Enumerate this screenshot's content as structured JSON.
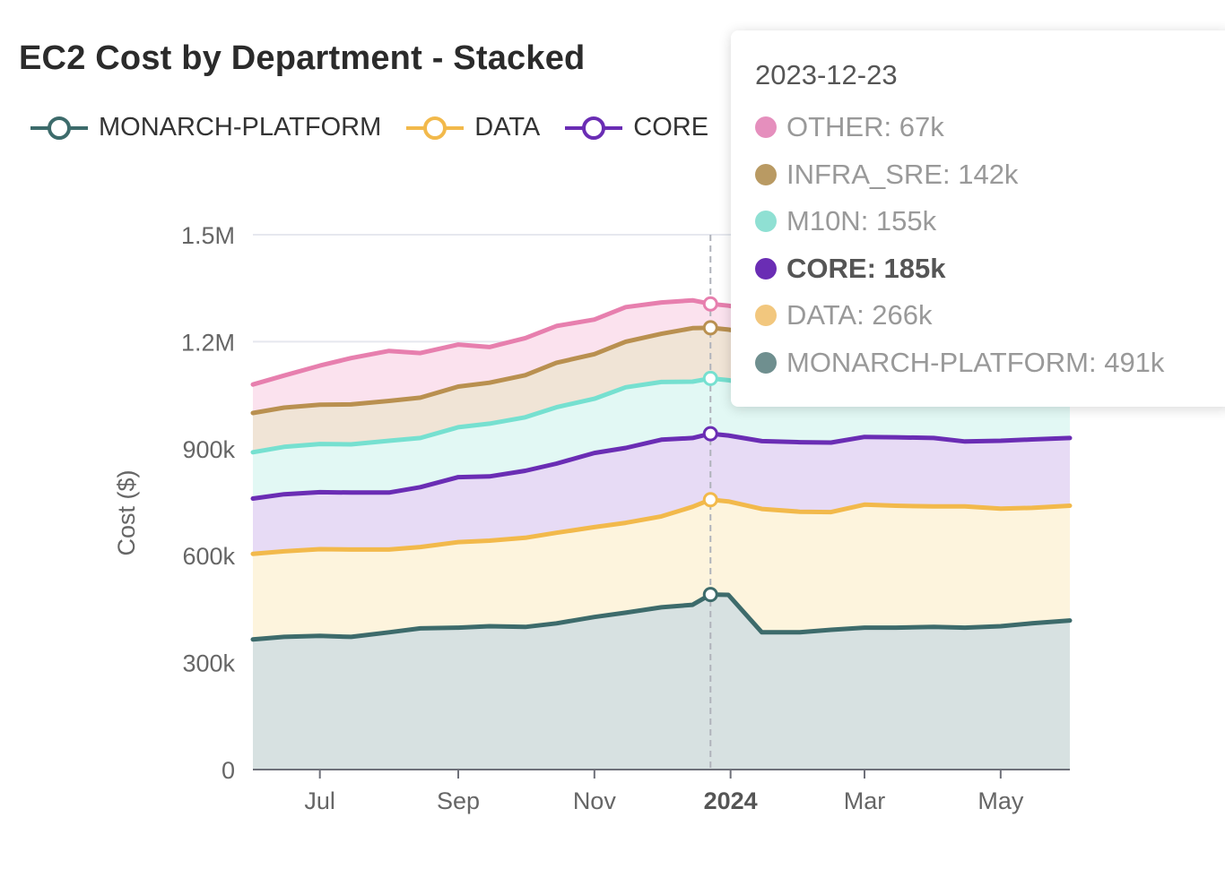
{
  "chart_data": {
    "type": "area",
    "stacked": true,
    "title": "EC2 Cost by Department - Stacked",
    "ylabel": "Cost ($)",
    "ylim": [
      0,
      1500000
    ],
    "x_tick_labels": [
      "Jul",
      "Sep",
      "Nov",
      "2024",
      "Mar",
      "May"
    ],
    "y_tick_labels": [
      "0",
      "300k",
      "600k",
      "900k",
      "1.2M",
      "1.5M"
    ],
    "x": [
      "2023-06-01",
      "2023-06-15",
      "2023-07-01",
      "2023-07-15",
      "2023-08-01",
      "2023-08-15",
      "2023-09-01",
      "2023-09-15",
      "2023-10-01",
      "2023-10-15",
      "2023-11-01",
      "2023-11-15",
      "2023-12-01",
      "2023-12-15",
      "2023-12-23",
      "2023-12-31",
      "2024-01-15",
      "2024-02-01",
      "2024-02-15",
      "2024-03-01",
      "2024-03-15",
      "2024-04-01",
      "2024-04-15",
      "2024-05-01",
      "2024-05-15",
      "2024-06-01"
    ],
    "series": [
      {
        "name": "MONARCH-PLATFORM",
        "color": "#3d6b6b",
        "fill": "#d7e1e1",
        "values": [
          365000,
          372000,
          375000,
          372000,
          385000,
          396000,
          398000,
          402000,
          400000,
          410000,
          428000,
          440000,
          455000,
          462000,
          491000,
          490000,
          385000,
          385000,
          392000,
          398000,
          398000,
          400000,
          398000,
          402000,
          410000,
          418000
        ]
      },
      {
        "name": "DATA",
        "color": "#f2b94b",
        "fill": "#fdf4dd",
        "values": [
          240000,
          240000,
          243000,
          245000,
          232000,
          228000,
          240000,
          240000,
          250000,
          254000,
          252000,
          252000,
          255000,
          275000,
          266000,
          262000,
          346000,
          338000,
          330000,
          345000,
          342000,
          338000,
          340000,
          330000,
          324000,
          322000
        ]
      },
      {
        "name": "CORE",
        "color": "#6a2db4",
        "fill": "#e7dbf5",
        "values": [
          155000,
          160000,
          160000,
          160000,
          160000,
          168000,
          182000,
          180000,
          188000,
          194000,
          208000,
          210000,
          215000,
          193000,
          185000,
          185000,
          190000,
          195000,
          195000,
          190000,
          192000,
          192000,
          182000,
          190000,
          192000,
          190000
        ]
      },
      {
        "name": "M10N",
        "color": "#76e0d0",
        "fill": "#e2f8f4",
        "values": [
          130000,
          133000,
          135000,
          135000,
          145000,
          138000,
          140000,
          148000,
          150000,
          158000,
          152000,
          170000,
          162000,
          158000,
          155000,
          155000,
          155000,
          155000,
          155000,
          155000,
          155000,
          155000,
          155000,
          155000,
          155000,
          155000
        ]
      },
      {
        "name": "INFRA_SRE",
        "color": "#b99050",
        "fill": "#f0e4d6",
        "values": [
          110000,
          110000,
          110000,
          112000,
          112000,
          113000,
          114000,
          115000,
          118000,
          125000,
          125000,
          128000,
          135000,
          150000,
          142000,
          142000,
          142000,
          142000,
          142000,
          142000,
          142000,
          142000,
          142000,
          142000,
          142000,
          142000
        ]
      },
      {
        "name": "OTHER",
        "color": "#e77fae",
        "fill": "#fbe2ee",
        "values": [
          80000,
          90000,
          110000,
          130000,
          140000,
          125000,
          118000,
          100000,
          104000,
          103000,
          97000,
          97000,
          88000,
          78000,
          67000,
          67000,
          67000,
          67000,
          67000,
          67000,
          67000,
          67000,
          67000,
          67000,
          67000,
          67000
        ]
      }
    ],
    "legend_visible": [
      "MONARCH-PLATFORM",
      "DATA",
      "CORE"
    ],
    "hover_date": "2023-12-23",
    "hover_x_label": "2024",
    "tooltip": {
      "date": "2023-12-23",
      "rows": [
        {
          "label": "OTHER: 67k",
          "color": "#e58fbd",
          "active": false
        },
        {
          "label": "INFRA_SRE: 142k",
          "color": "#b99a63",
          "active": false
        },
        {
          "label": "M10N: 155k",
          "color": "#8fe0d3",
          "active": false
        },
        {
          "label": "CORE: 185k",
          "color": "#6a2db4",
          "active": true
        },
        {
          "label": "DATA: 266k",
          "color": "#f2c77e",
          "active": false
        },
        {
          "label": "MONARCH-PLATFORM: 491k",
          "color": "#6f8f8f",
          "active": false
        }
      ]
    }
  }
}
